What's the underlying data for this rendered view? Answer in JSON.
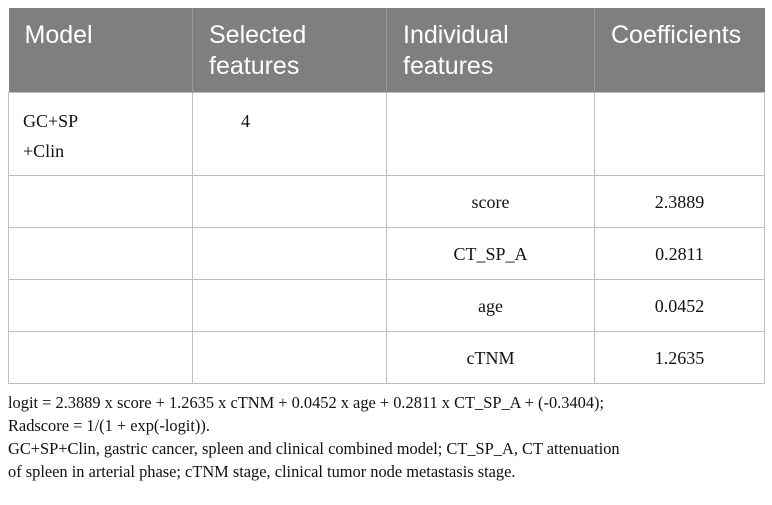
{
  "table": {
    "headers": [
      "Model",
      "Selected\nfeatures",
      "Individual\nfeatures",
      "Coefficients"
    ],
    "rows": [
      {
        "model": "GC+SP\n+Clin",
        "selected": "4",
        "feature": "",
        "coef": ""
      },
      {
        "model": "",
        "selected": "",
        "feature": "score",
        "coef": "2.3889"
      },
      {
        "model": "",
        "selected": "",
        "feature": "CT_SP_A",
        "coef": "0.2811"
      },
      {
        "model": "",
        "selected": "",
        "feature": "age",
        "coef": "0.0452"
      },
      {
        "model": "",
        "selected": "",
        "feature": "cTNM",
        "coef": "1.2635"
      }
    ]
  },
  "notes": {
    "formula_line1": "logit = 2.3889 x score + 1.2635 x cTNM + 0.0452 x age + 0.2811 x CT_SP_A + (-0.3404);",
    "formula_line2": "Radscore = 1/(1 + exp(-logit)).",
    "abbrev_line1": "GC+SP+Clin, gastric cancer, spleen and clinical combined model; CT_SP_A, CT attenuation",
    "abbrev_line2": "of spleen in arterial phase; cTNM stage, clinical tumor node metastasis stage."
  },
  "colors": {
    "header_bg": "#7f7f7f",
    "header_text": "#ffffff",
    "grid": "#bfbfbf"
  }
}
